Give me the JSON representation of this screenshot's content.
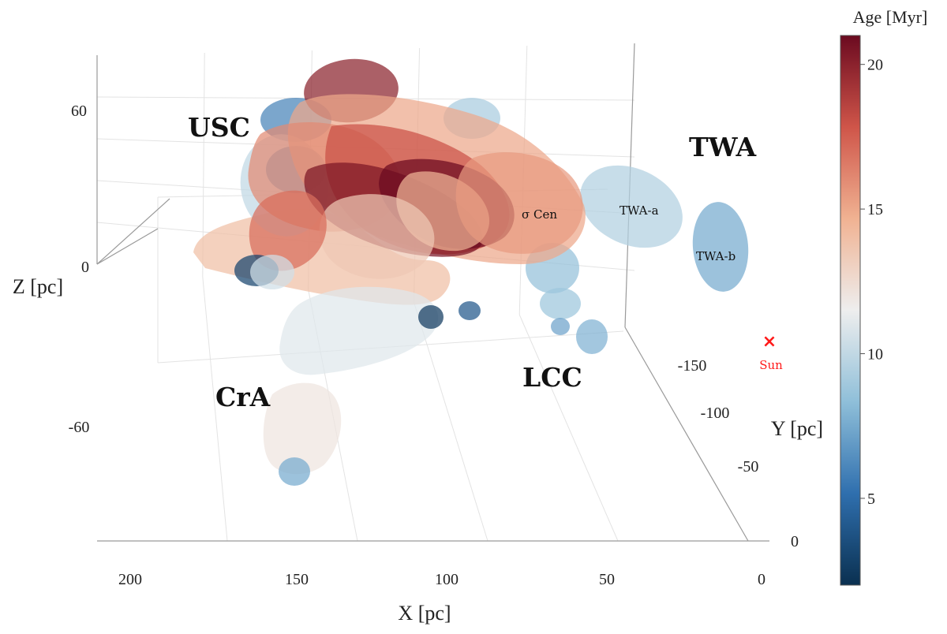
{
  "chart_data": {
    "type": "scatter",
    "title": "",
    "axes": {
      "x": {
        "label": "X [pc]",
        "ticks": [
          "200",
          "150",
          "100",
          "50",
          "0"
        ],
        "range": [
          0,
          215
        ]
      },
      "y": {
        "label": "Y [pc]",
        "ticks": [
          "-150",
          "-100",
          "-50",
          "0"
        ],
        "range": [
          -180,
          0
        ]
      },
      "z": {
        "label": "Z [pc]",
        "ticks": [
          "60",
          "0",
          "-60"
        ],
        "range": [
          -100,
          90
        ]
      }
    },
    "colorbar": {
      "title": "Age [Myr]",
      "ticks": [
        "20",
        "15",
        "10",
        "5"
      ],
      "range": [
        2,
        21
      ],
      "colormap": "RdBu_r",
      "stops": [
        "#0a3050",
        "#2f6fae",
        "#8fbfd9",
        "#eeeeee",
        "#f0b292",
        "#cf5549",
        "#6b0a20"
      ]
    },
    "groups": [
      {
        "name": "USC"
      },
      {
        "name": "TWA"
      },
      {
        "name": "CrA"
      },
      {
        "name": "LCC"
      }
    ],
    "annotations": [
      {
        "text": "σ Cen"
      },
      {
        "text": "TWA-a"
      },
      {
        "text": "TWA-b"
      }
    ],
    "marker": {
      "symbol": "×",
      "label": "Sun",
      "color": "#ff0000"
    },
    "clusters": [
      {
        "group": "TWA",
        "age": 9.5
      },
      {
        "group": "TWA",
        "age": 7.5
      },
      {
        "group": "LCC",
        "age": 8.5
      },
      {
        "group": "LCC",
        "age": 8.8
      },
      {
        "group": "LCC",
        "age": 7.8
      },
      {
        "group": "LCC",
        "age": 7.2
      },
      {
        "group": "LCC",
        "age": 9.2
      },
      {
        "group": "USC",
        "age": 14.0
      },
      {
        "group": "USC",
        "age": 6.0
      },
      {
        "group": "USC",
        "age": 10.0
      },
      {
        "group": "USC",
        "age": 7.0
      },
      {
        "group": "USC",
        "age": 20.0
      },
      {
        "group": "USC",
        "age": 15.0
      },
      {
        "group": "USC",
        "age": 16.0
      },
      {
        "group": "USC",
        "age": 18.0
      },
      {
        "group": "USC",
        "age": 20.5
      },
      {
        "group": "USC",
        "age": 21.0
      },
      {
        "group": "USC",
        "age": 14.5
      },
      {
        "group": "USC",
        "age": 13.5
      },
      {
        "group": "USC",
        "age": 15.5
      },
      {
        "group": "USC",
        "age": 17.0
      },
      {
        "group": "USC",
        "age": 11.0
      },
      {
        "group": "USC",
        "age": 3.0
      },
      {
        "group": "LCC",
        "age": 2.5
      },
      {
        "group": "LCC",
        "age": 4.0
      },
      {
        "group": "CrA",
        "age": 12.0
      },
      {
        "group": "CrA",
        "age": 10.5
      },
      {
        "group": "CrA",
        "age": 7.5
      }
    ]
  }
}
